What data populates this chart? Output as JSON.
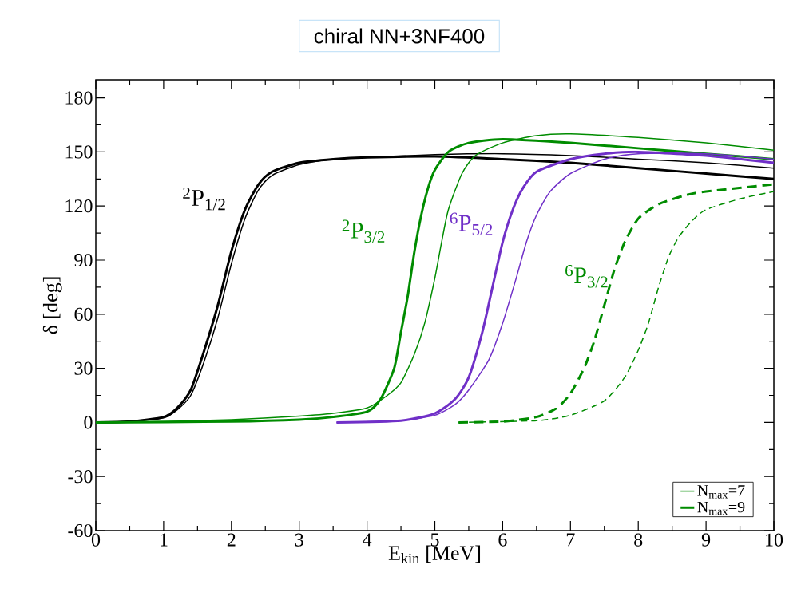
{
  "chart_data": {
    "type": "line",
    "title": "chiral NN+3NF400",
    "xlabel": "E$_{kin}$ [MeV]",
    "ylabel": "δ [deg]",
    "xlim": [
      0,
      10
    ],
    "ylim": [
      -60,
      190
    ],
    "xticks": [
      0,
      1,
      2,
      3,
      4,
      5,
      6,
      7,
      8,
      9,
      10
    ],
    "yticks": [
      -60,
      -30,
      0,
      30,
      60,
      90,
      120,
      150,
      180
    ],
    "legend": "bottom right",
    "series": [
      {
        "color": "#000000",
        "x": [
          0,
          0.5,
          1,
          1.2,
          1.4,
          1.6,
          1.8,
          2.0,
          2.2,
          2.4,
          2.6,
          3,
          3.5,
          4,
          5,
          6,
          7,
          8,
          9,
          10
        ],
        "values": [
          0,
          0.5,
          2.5,
          7,
          15,
          34,
          58,
          88,
          113,
          129,
          137,
          143,
          146,
          147,
          148.5,
          149,
          148,
          146,
          144,
          141
        ]
      },
      {
        "color": "#000000",
        "x": [
          0,
          0.5,
          1,
          1.2,
          1.4,
          1.6,
          1.8,
          2.0,
          2.2,
          2.4,
          2.6,
          3,
          3.5,
          4,
          5,
          6,
          7,
          8,
          9,
          10
        ],
        "values": [
          0,
          0.5,
          3,
          8,
          18,
          40,
          65,
          95,
          118,
          132,
          139,
          144,
          146,
          147,
          147.5,
          146,
          144,
          141,
          138,
          135
        ]
      },
      {
        "name": "N$_{max}$=7",
        "color": "#008c00",
        "x": [
          0,
          1,
          2,
          3,
          3.5,
          4,
          4.3,
          4.5,
          4.7,
          4.85,
          5.0,
          5.1,
          5.2,
          5.4,
          5.6,
          6,
          6.5,
          7,
          8,
          9,
          10
        ],
        "values": [
          0,
          0.5,
          1.5,
          3.5,
          5,
          8,
          15,
          22,
          38,
          55,
          80,
          100,
          118,
          138,
          148,
          155,
          159,
          160,
          158,
          155,
          151
        ]
      },
      {
        "name": "N$_{max}$=9",
        "color": "#008c00",
        "x": [
          0,
          2,
          3,
          3.5,
          4,
          4.2,
          4.4,
          4.5,
          4.6,
          4.7,
          4.8,
          4.9,
          5.0,
          5.2,
          5.5,
          6,
          7,
          8,
          9,
          10
        ],
        "values": [
          0,
          0.5,
          1.5,
          3,
          6,
          13,
          30,
          50,
          70,
          95,
          115,
          130,
          140,
          150,
          155,
          157,
          155,
          152,
          149,
          146
        ]
      },
      {
        "color": "#7030c8",
        "x": [
          3.55,
          4.5,
          5.0,
          5.3,
          5.5,
          5.8,
          6.0,
          6.2,
          6.35,
          6.5,
          6.7,
          7,
          7.5,
          8,
          9,
          10
        ],
        "values": [
          0,
          1,
          4,
          10,
          18,
          35,
          55,
          80,
          100,
          115,
          128,
          138,
          146,
          149,
          149,
          146
        ]
      },
      {
        "color": "#7030c8",
        "x": [
          3.55,
          4.5,
          5.0,
          5.3,
          5.5,
          5.7,
          5.85,
          6.0,
          6.15,
          6.3,
          6.5,
          7,
          7.5,
          8,
          9,
          10
        ],
        "values": [
          0,
          1,
          5,
          13,
          25,
          50,
          75,
          100,
          118,
          130,
          139,
          146,
          149,
          150,
          148,
          144
        ]
      },
      {
        "color": "#008c00",
        "line_style": "dashed",
        "x": [
          5.35,
          6.5,
          7,
          7.5,
          7.8,
          8.0,
          8.15,
          8.3,
          8.45,
          8.6,
          8.8,
          9.0,
          9.5,
          10
        ],
        "values": [
          0,
          1,
          4,
          12,
          25,
          40,
          55,
          75,
          92,
          103,
          112,
          118,
          124,
          128
        ]
      },
      {
        "color": "#008c00",
        "line_style": "dashed",
        "x": [
          5.35,
          6,
          6.5,
          6.8,
          7,
          7.2,
          7.35,
          7.5,
          7.65,
          7.8,
          8,
          8.3,
          8.7,
          9,
          10
        ],
        "values": [
          0,
          0.5,
          3,
          8,
          16,
          30,
          45,
          65,
          85,
          100,
          113,
          121,
          126,
          128,
          132
        ]
      }
    ],
    "annotations": [
      "$^{2}$P$_{1/2}$",
      "$^{2}$P$_{3/2}$",
      "$^{6}$P$_{5/2}$",
      "$^{6}$P$_{3/2}$"
    ]
  }
}
